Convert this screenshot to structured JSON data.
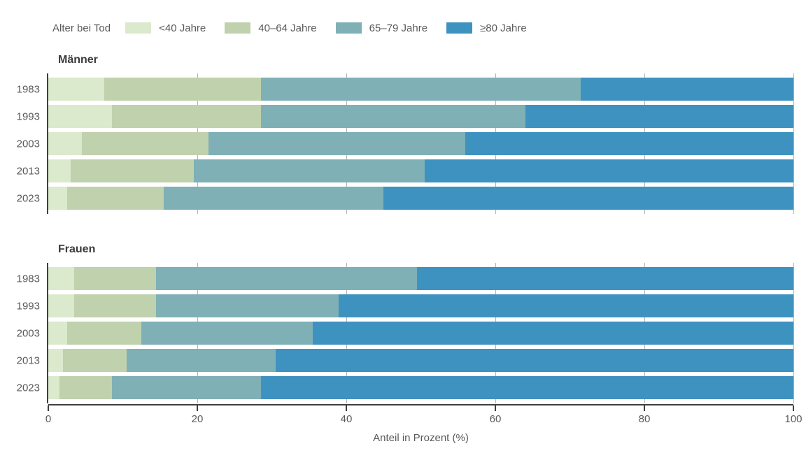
{
  "legend": {
    "title": "Alter bei Tod",
    "items": [
      {
        "label": "<40 Jahre",
        "color": "#dbe9cd"
      },
      {
        "label": "40–64 Jahre",
        "color": "#c0d1ad"
      },
      {
        "label": "65–79 Jahre",
        "color": "#7eb0b6"
      },
      {
        "label": "≥80 Jahre",
        "color": "#3e92c0"
      }
    ]
  },
  "chart_data": {
    "type": "bar",
    "orientation": "horizontal",
    "stacked": true,
    "unit": "percent",
    "xlabel": "Anteil in Prozent (%)",
    "xlim": [
      0,
      100
    ],
    "xticks": [
      "0",
      "20",
      "40",
      "60",
      "80",
      "100"
    ],
    "grid": true,
    "legend_position": "top",
    "series_names": [
      "<40 Jahre",
      "40–64 Jahre",
      "65–79 Jahre",
      "≥80 Jahre"
    ],
    "panels": [
      {
        "title": "Männer",
        "categories": [
          "1983",
          "1993",
          "2003",
          "2013",
          "2023"
        ],
        "rows": [
          {
            "year": "1983",
            "values": [
              7.5,
              21.0,
              43.0,
              28.5
            ]
          },
          {
            "year": "1993",
            "values": [
              8.5,
              20.0,
              35.5,
              36.0
            ]
          },
          {
            "year": "2003",
            "values": [
              4.5,
              17.0,
              34.5,
              44.0
            ]
          },
          {
            "year": "2013",
            "values": [
              3.0,
              16.5,
              31.0,
              49.5
            ]
          },
          {
            "year": "2023",
            "values": [
              2.5,
              13.0,
              29.5,
              55.0
            ]
          }
        ]
      },
      {
        "title": "Frauen",
        "categories": [
          "1983",
          "1993",
          "2003",
          "2013",
          "2023"
        ],
        "rows": [
          {
            "year": "1983",
            "values": [
              3.5,
              11.0,
              35.0,
              50.5
            ]
          },
          {
            "year": "1993",
            "values": [
              3.5,
              11.0,
              24.5,
              61.0
            ]
          },
          {
            "year": "2003",
            "values": [
              2.5,
              10.0,
              23.0,
              64.5
            ]
          },
          {
            "year": "2013",
            "values": [
              2.0,
              8.5,
              20.0,
              69.5
            ]
          },
          {
            "year": "2023",
            "values": [
              1.5,
              7.0,
              20.0,
              71.5
            ]
          }
        ]
      }
    ]
  },
  "colors": {
    "axis_line": "#3f3f3f",
    "gridline": "#b3b3b3",
    "label_text": "#595959",
    "title_text": "#3a3a3a",
    "background": "#ffffff"
  }
}
